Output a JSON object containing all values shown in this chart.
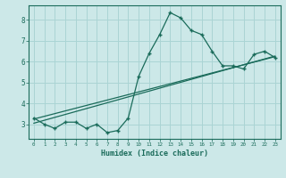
{
  "xlabel": "Humidex (Indice chaleur)",
  "x_data": [
    0,
    1,
    2,
    3,
    4,
    5,
    6,
    7,
    8,
    9,
    10,
    11,
    12,
    13,
    14,
    15,
    16,
    17,
    18,
    19,
    20,
    21,
    22,
    23
  ],
  "y_main": [
    3.3,
    3.0,
    2.8,
    3.1,
    3.1,
    2.8,
    3.0,
    2.6,
    2.7,
    3.3,
    5.3,
    6.4,
    7.3,
    8.35,
    8.1,
    7.5,
    7.3,
    6.5,
    5.8,
    5.8,
    5.65,
    6.35,
    6.5,
    6.2
  ],
  "y_linear1": [
    3.25,
    3.38,
    3.51,
    3.64,
    3.77,
    3.9,
    4.03,
    4.16,
    4.29,
    4.42,
    4.55,
    4.68,
    4.81,
    4.94,
    5.07,
    5.2,
    5.33,
    5.46,
    5.59,
    5.72,
    5.85,
    5.98,
    6.11,
    6.24
  ],
  "y_linear2": [
    3.05,
    3.19,
    3.33,
    3.47,
    3.61,
    3.75,
    3.89,
    4.03,
    4.17,
    4.31,
    4.45,
    4.59,
    4.73,
    4.87,
    5.01,
    5.15,
    5.29,
    5.43,
    5.57,
    5.71,
    5.85,
    5.99,
    6.13,
    6.27
  ],
  "line_color": "#1a6b5a",
  "bg_color": "#cce8e8",
  "grid_color": "#aad4d4",
  "text_color": "#1a6b5a",
  "ylim": [
    2.3,
    8.7
  ],
  "xlim": [
    -0.5,
    23.5
  ],
  "yticks": [
    3,
    4,
    5,
    6,
    7,
    8
  ],
  "xticks": [
    0,
    1,
    2,
    3,
    4,
    5,
    6,
    7,
    8,
    9,
    10,
    11,
    12,
    13,
    14,
    15,
    16,
    17,
    18,
    19,
    20,
    21,
    22,
    23
  ]
}
